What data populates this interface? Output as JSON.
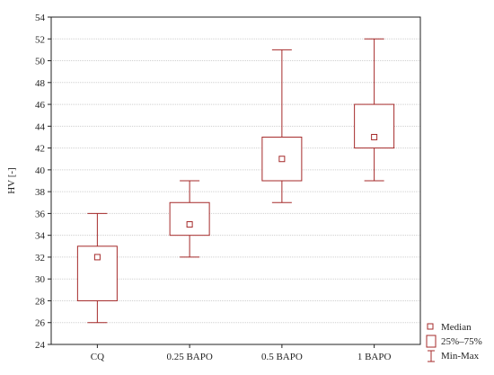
{
  "chart_data": {
    "type": "boxplot",
    "ylabel": "HV [-]",
    "xlabel": "",
    "ylim": [
      24,
      54
    ],
    "yticks": [
      24,
      26,
      28,
      30,
      32,
      34,
      36,
      38,
      40,
      42,
      44,
      46,
      48,
      50,
      52,
      54
    ],
    "grid": true,
    "legend_position": "bottom-right",
    "categories": [
      "CQ",
      "0.25 BAPO",
      "0.5 BAPO",
      "1 BAPO"
    ],
    "series": [
      {
        "category": "CQ",
        "min": 26,
        "q1": 28,
        "median": 32,
        "q3": 33,
        "max": 36
      },
      {
        "category": "0.25 BAPO",
        "min": 32,
        "q1": 34,
        "median": 35,
        "q3": 37,
        "max": 39
      },
      {
        "category": "0.5 BAPO",
        "min": 37,
        "q1": 39,
        "median": 41,
        "q3": 43,
        "max": 51
      },
      {
        "category": "1 BAPO",
        "min": 39,
        "q1": 42,
        "median": 43,
        "q3": 46,
        "max": 52
      }
    ],
    "legend": {
      "median": "Median",
      "iqr": "25%–75%",
      "range": "Min-Max"
    },
    "colors": {
      "box": "#a52a2a",
      "grid": "#cfcfcf",
      "frame": "#222222"
    }
  }
}
